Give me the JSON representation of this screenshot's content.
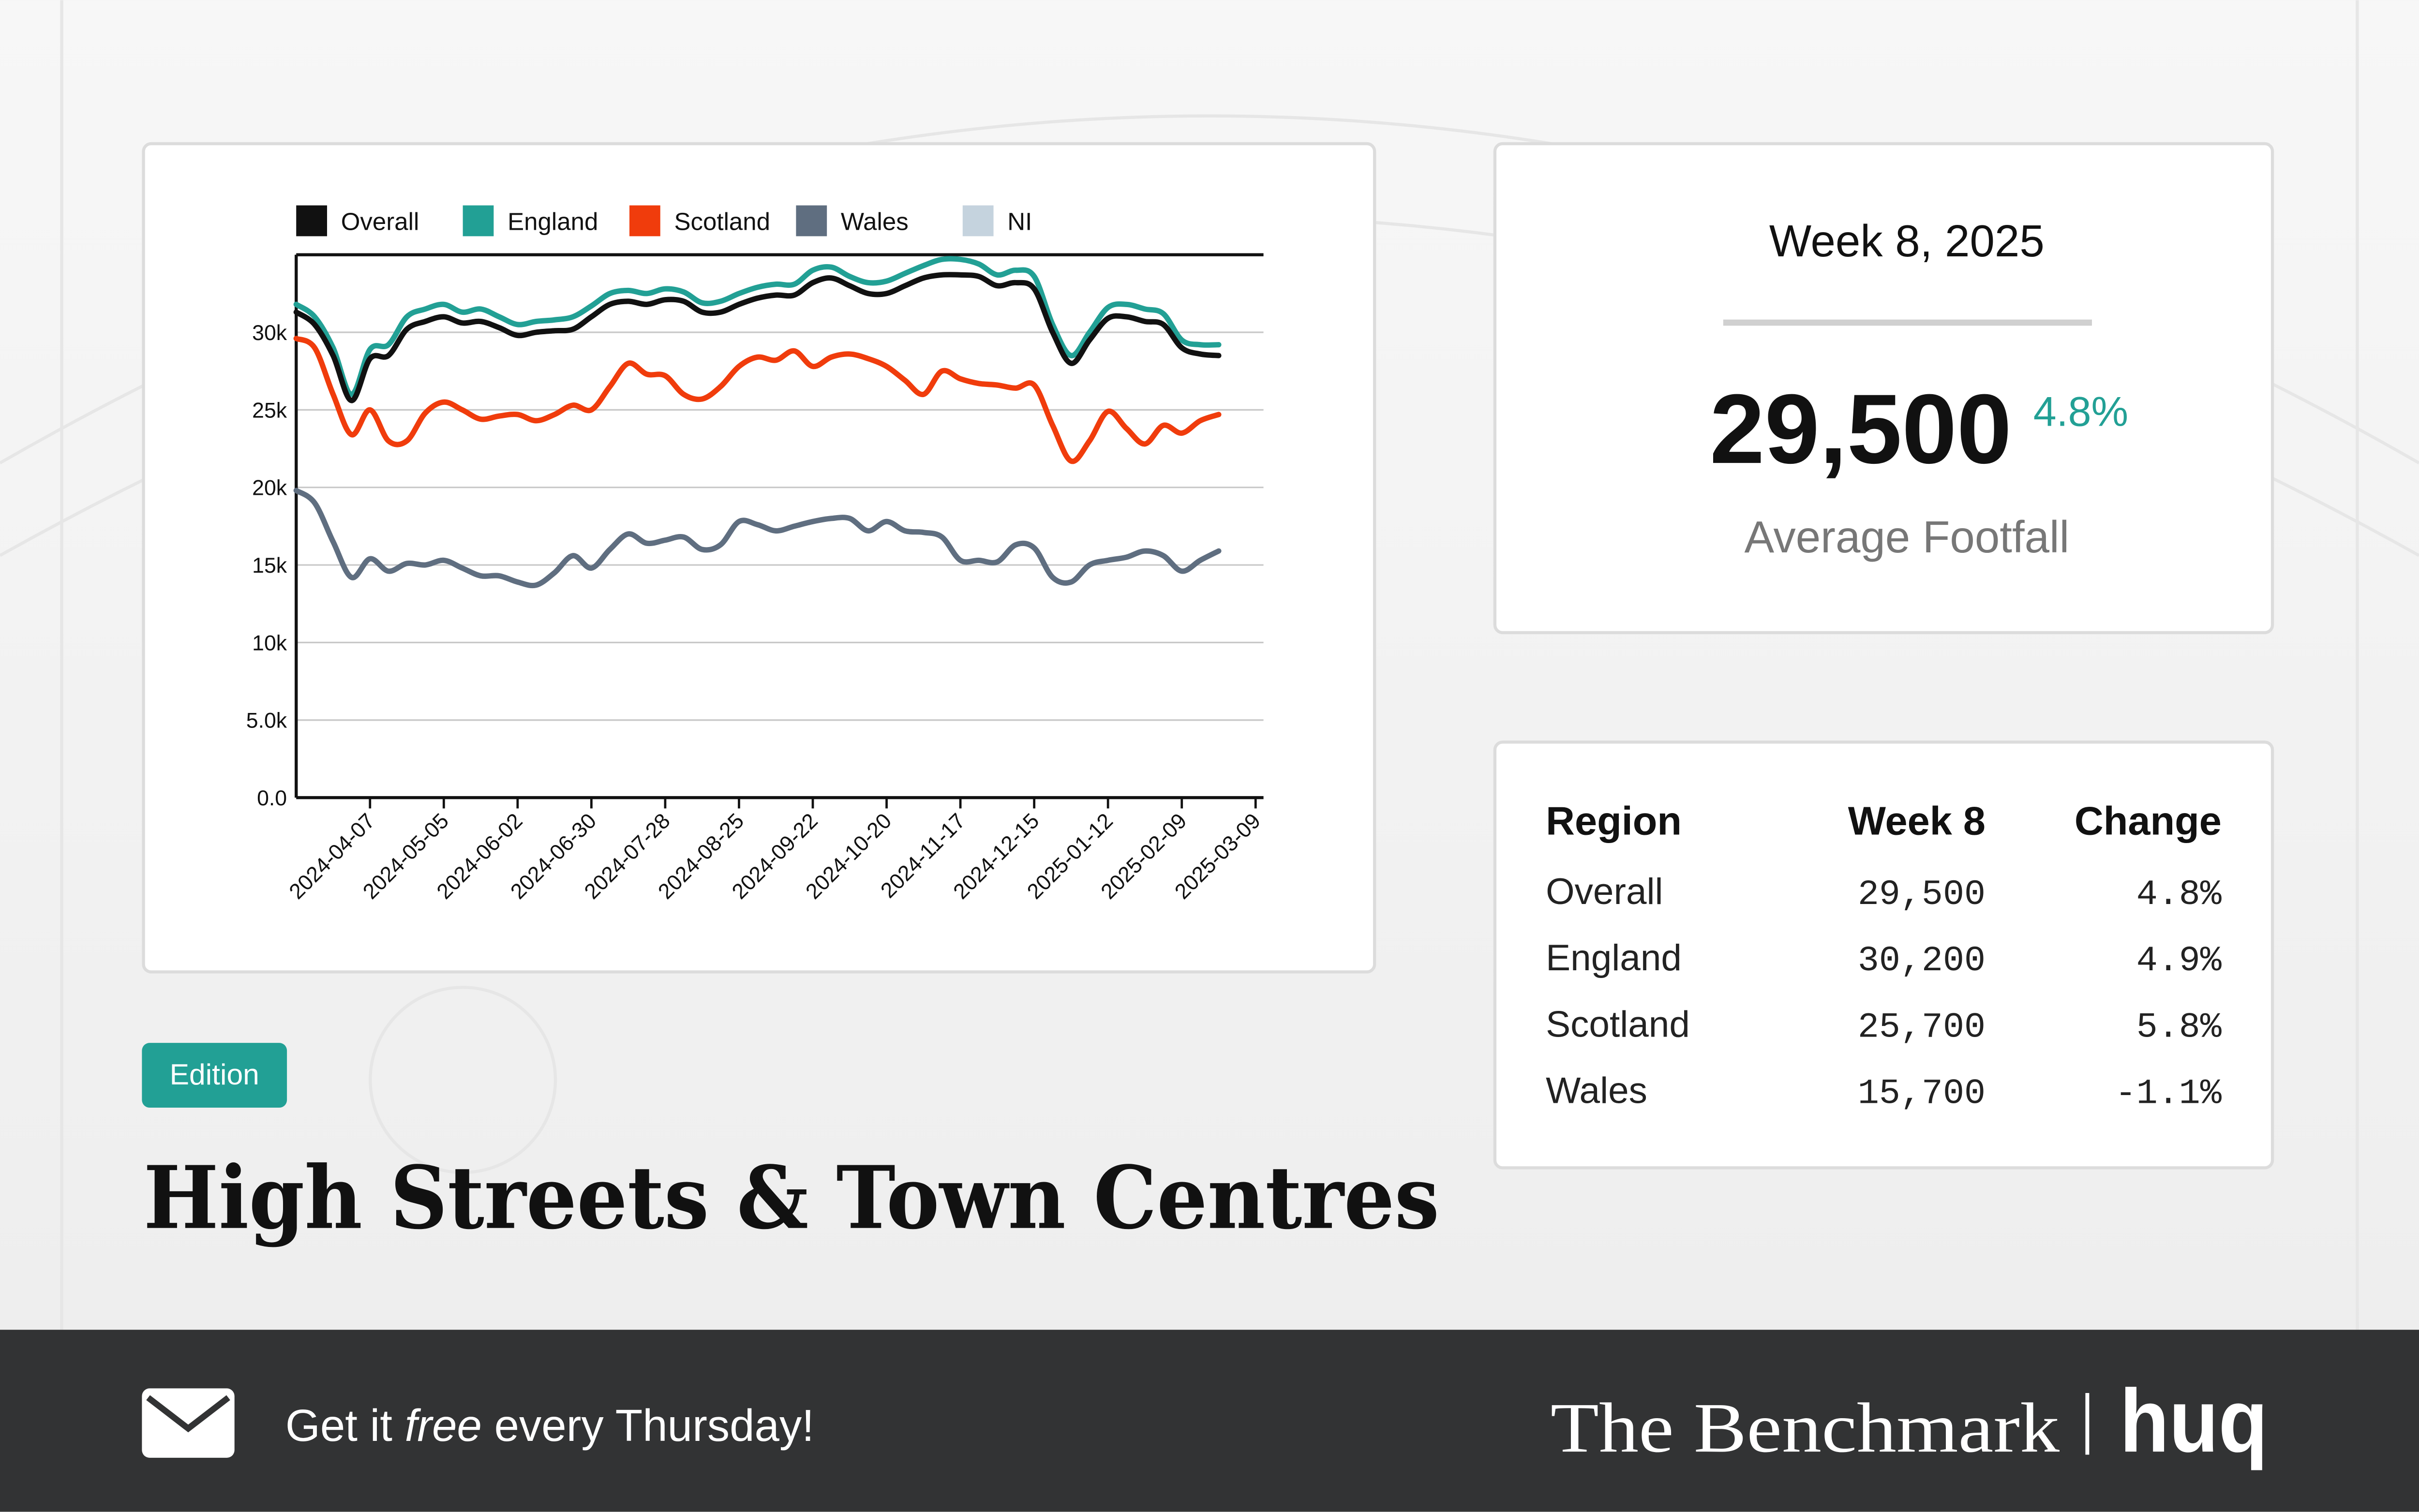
{
  "chart_data": {
    "type": "line",
    "x": [
      "2024-03-10",
      "2024-03-17",
      "2024-03-24",
      "2024-03-31",
      "2024-04-07",
      "2024-04-14",
      "2024-04-21",
      "2024-04-28",
      "2024-05-05",
      "2024-05-12",
      "2024-05-19",
      "2024-05-26",
      "2024-06-02",
      "2024-06-09",
      "2024-06-16",
      "2024-06-23",
      "2024-06-30",
      "2024-07-07",
      "2024-07-14",
      "2024-07-21",
      "2024-07-28",
      "2024-08-04",
      "2024-08-11",
      "2024-08-18",
      "2024-08-25",
      "2024-09-01",
      "2024-09-08",
      "2024-09-15",
      "2024-09-22",
      "2024-09-29",
      "2024-10-06",
      "2024-10-13",
      "2024-10-20",
      "2024-10-27",
      "2024-11-03",
      "2024-11-10",
      "2024-11-17",
      "2024-11-24",
      "2024-12-01",
      "2024-12-08",
      "2024-12-15",
      "2024-12-22",
      "2024-12-29",
      "2025-01-05",
      "2025-01-12",
      "2025-01-19",
      "2025-01-26",
      "2025-02-02",
      "2025-02-09",
      "2025-02-16",
      "2025-02-23"
    ],
    "series": [
      {
        "name": "Overall",
        "color": "#111111",
        "values": [
          31300,
          30500,
          28500,
          25600,
          28300,
          28500,
          30200,
          30700,
          31000,
          30600,
          30700,
          30300,
          29800,
          30000,
          30100,
          30200,
          31000,
          31800,
          32000,
          31800,
          32100,
          32000,
          31300,
          31300,
          31800,
          32200,
          32400,
          32400,
          33200,
          33500,
          33000,
          32500,
          32500,
          33000,
          33500,
          33700,
          33700,
          33600,
          33000,
          33200,
          32800,
          30000,
          28000,
          29500,
          30900,
          31000,
          30700,
          30500,
          29000,
          28600,
          28500
        ]
      },
      {
        "name": "England",
        "color": "#22a095",
        "values": [
          31800,
          31000,
          29000,
          26000,
          28900,
          29200,
          31000,
          31500,
          31800,
          31300,
          31500,
          31000,
          30500,
          30700,
          30800,
          31000,
          31700,
          32500,
          32700,
          32500,
          32800,
          32600,
          31900,
          32000,
          32500,
          32900,
          33100,
          33100,
          34000,
          34200,
          33600,
          33200,
          33300,
          33800,
          34300,
          34700,
          34700,
          34400,
          33700,
          34000,
          33600,
          30500,
          28500,
          30000,
          31600,
          31800,
          31500,
          31200,
          29500,
          29200,
          29200
        ]
      },
      {
        "name": "Scotland",
        "color": "#f03c0c",
        "values": [
          29600,
          29000,
          26000,
          23400,
          25000,
          23000,
          23000,
          24800,
          25500,
          25000,
          24400,
          24600,
          24700,
          24300,
          24700,
          25300,
          25000,
          26500,
          28000,
          27300,
          27200,
          26000,
          25700,
          26500,
          27800,
          28400,
          28200,
          28800,
          27800,
          28400,
          28600,
          28300,
          27800,
          26900,
          26000,
          27500,
          27000,
          26700,
          26600,
          26400,
          26600,
          24000,
          21700,
          23000,
          24900,
          23800,
          22800,
          24000,
          23500,
          24300,
          24700
        ]
      },
      {
        "name": "Wales",
        "color": "#5f6e80",
        "values": [
          19800,
          19000,
          16500,
          14200,
          15400,
          14600,
          15100,
          15000,
          15300,
          14800,
          14300,
          14300,
          13900,
          13700,
          14500,
          15600,
          14800,
          16000,
          17000,
          16400,
          16600,
          16800,
          16000,
          16300,
          17800,
          17600,
          17200,
          17500,
          17800,
          18000,
          18000,
          17200,
          17800,
          17200,
          17100,
          16800,
          15300,
          15300,
          15200,
          16300,
          16100,
          14200,
          13900,
          15000,
          15300,
          15500,
          15900,
          15600,
          14600,
          15300,
          15900
        ]
      },
      {
        "name": "NI",
        "color": "#c5d3de",
        "values": [
          null,
          null,
          null,
          null,
          null,
          null,
          null,
          null,
          null,
          null,
          null,
          null,
          null,
          null,
          null,
          null,
          null,
          null,
          null,
          null,
          null,
          null,
          null,
          null,
          null,
          null,
          null,
          null,
          null,
          null,
          null,
          null,
          null,
          null,
          null,
          null,
          null,
          null,
          null,
          null,
          null,
          null,
          null,
          null,
          null,
          null,
          null,
          null,
          null,
          null,
          null
        ]
      }
    ],
    "xlim": [
      "2024-03-10",
      "2025-03-12"
    ],
    "xticks": [
      "2024-04-07",
      "2024-05-05",
      "2024-06-02",
      "2024-06-30",
      "2024-07-28",
      "2024-08-25",
      "2024-09-22",
      "2024-10-20",
      "2024-11-17",
      "2024-12-15",
      "2025-01-12",
      "2025-02-09",
      "2025-03-09"
    ],
    "ylim": [
      0,
      35000
    ],
    "yticks": [
      {
        "value": 0,
        "label": "0.0"
      },
      {
        "value": 5000,
        "label": "5.0k"
      },
      {
        "value": 10000,
        "label": "10k"
      },
      {
        "value": 15000,
        "label": "15k"
      },
      {
        "value": 20000,
        "label": "20k"
      },
      {
        "value": 25000,
        "label": "25k"
      },
      {
        "value": 30000,
        "label": "30k"
      }
    ],
    "grid": true,
    "legend": "top"
  },
  "summary": {
    "period": "Week 8, 2025",
    "value": "29,500",
    "change": "4.8%",
    "label": "Average Footfall"
  },
  "table": {
    "header": [
      "Region",
      "Week 8",
      "Change"
    ],
    "rows": [
      [
        "Overall",
        "29,500",
        "4.8%"
      ],
      [
        "England",
        "30,200",
        "4.9%"
      ],
      [
        "Scotland",
        "25,700",
        "5.8%"
      ],
      [
        "Wales",
        "15,700",
        "-1.1%"
      ]
    ]
  },
  "badge": "Edition",
  "title": "High Streets & Town Centres",
  "footer": {
    "cta": [
      "Get it ",
      "free",
      " every Thursday!"
    ],
    "brand": "The Benchmark",
    "logo": "huq"
  }
}
